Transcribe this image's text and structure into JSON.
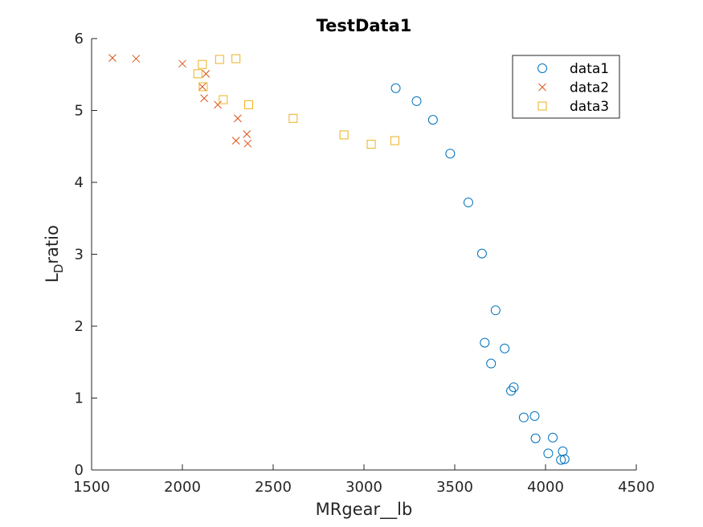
{
  "chart_data": {
    "type": "scatter",
    "title": "TestData1",
    "xlabel": "MRgear__lb",
    "ylabel_main": "L",
    "ylabel_sub": "D",
    "ylabel_tail": "ratio",
    "xlim": [
      1500,
      4500
    ],
    "ylim": [
      0,
      6
    ],
    "xticks": [
      1500,
      2000,
      2500,
      3000,
      3500,
      4000,
      4500
    ],
    "yticks": [
      0,
      1,
      2,
      3,
      4,
      5,
      6
    ],
    "grid": false,
    "legend_position": "top-right",
    "series": [
      {
        "name": "data1",
        "marker": "circle",
        "color": "#0072BD",
        "points": [
          [
            3175,
            5.31
          ],
          [
            3290,
            5.13
          ],
          [
            3380,
            4.87
          ],
          [
            3475,
            4.4
          ],
          [
            3575,
            3.72
          ],
          [
            3650,
            3.01
          ],
          [
            3725,
            2.22
          ],
          [
            3665,
            1.77
          ],
          [
            3775,
            1.69
          ],
          [
            3700,
            1.48
          ],
          [
            3810,
            1.1
          ],
          [
            3825,
            1.15
          ],
          [
            3880,
            0.73
          ],
          [
            3940,
            0.75
          ],
          [
            3945,
            0.44
          ],
          [
            4040,
            0.45
          ],
          [
            4015,
            0.23
          ],
          [
            4085,
            0.14
          ],
          [
            4095,
            0.26
          ],
          [
            4105,
            0.15
          ]
        ]
      },
      {
        "name": "data2",
        "marker": "x",
        "color": "#D95319",
        "points": [
          [
            1615,
            5.73
          ],
          [
            1745,
            5.72
          ],
          [
            2000,
            5.65
          ],
          [
            2110,
            5.33
          ],
          [
            2130,
            5.51
          ],
          [
            2120,
            5.17
          ],
          [
            2195,
            5.08
          ],
          [
            2305,
            4.89
          ],
          [
            2295,
            4.58
          ],
          [
            2355,
            4.67
          ],
          [
            2360,
            4.54
          ]
        ]
      },
      {
        "name": "data3",
        "marker": "square",
        "color": "#EDB120",
        "points": [
          [
            2085,
            5.51
          ],
          [
            2110,
            5.64
          ],
          [
            2115,
            5.33
          ],
          [
            2205,
            5.71
          ],
          [
            2295,
            5.72
          ],
          [
            2225,
            5.15
          ],
          [
            2365,
            5.08
          ],
          [
            2610,
            4.89
          ],
          [
            2890,
            4.66
          ],
          [
            3040,
            4.53
          ],
          [
            3170,
            4.58
          ]
        ]
      }
    ]
  }
}
